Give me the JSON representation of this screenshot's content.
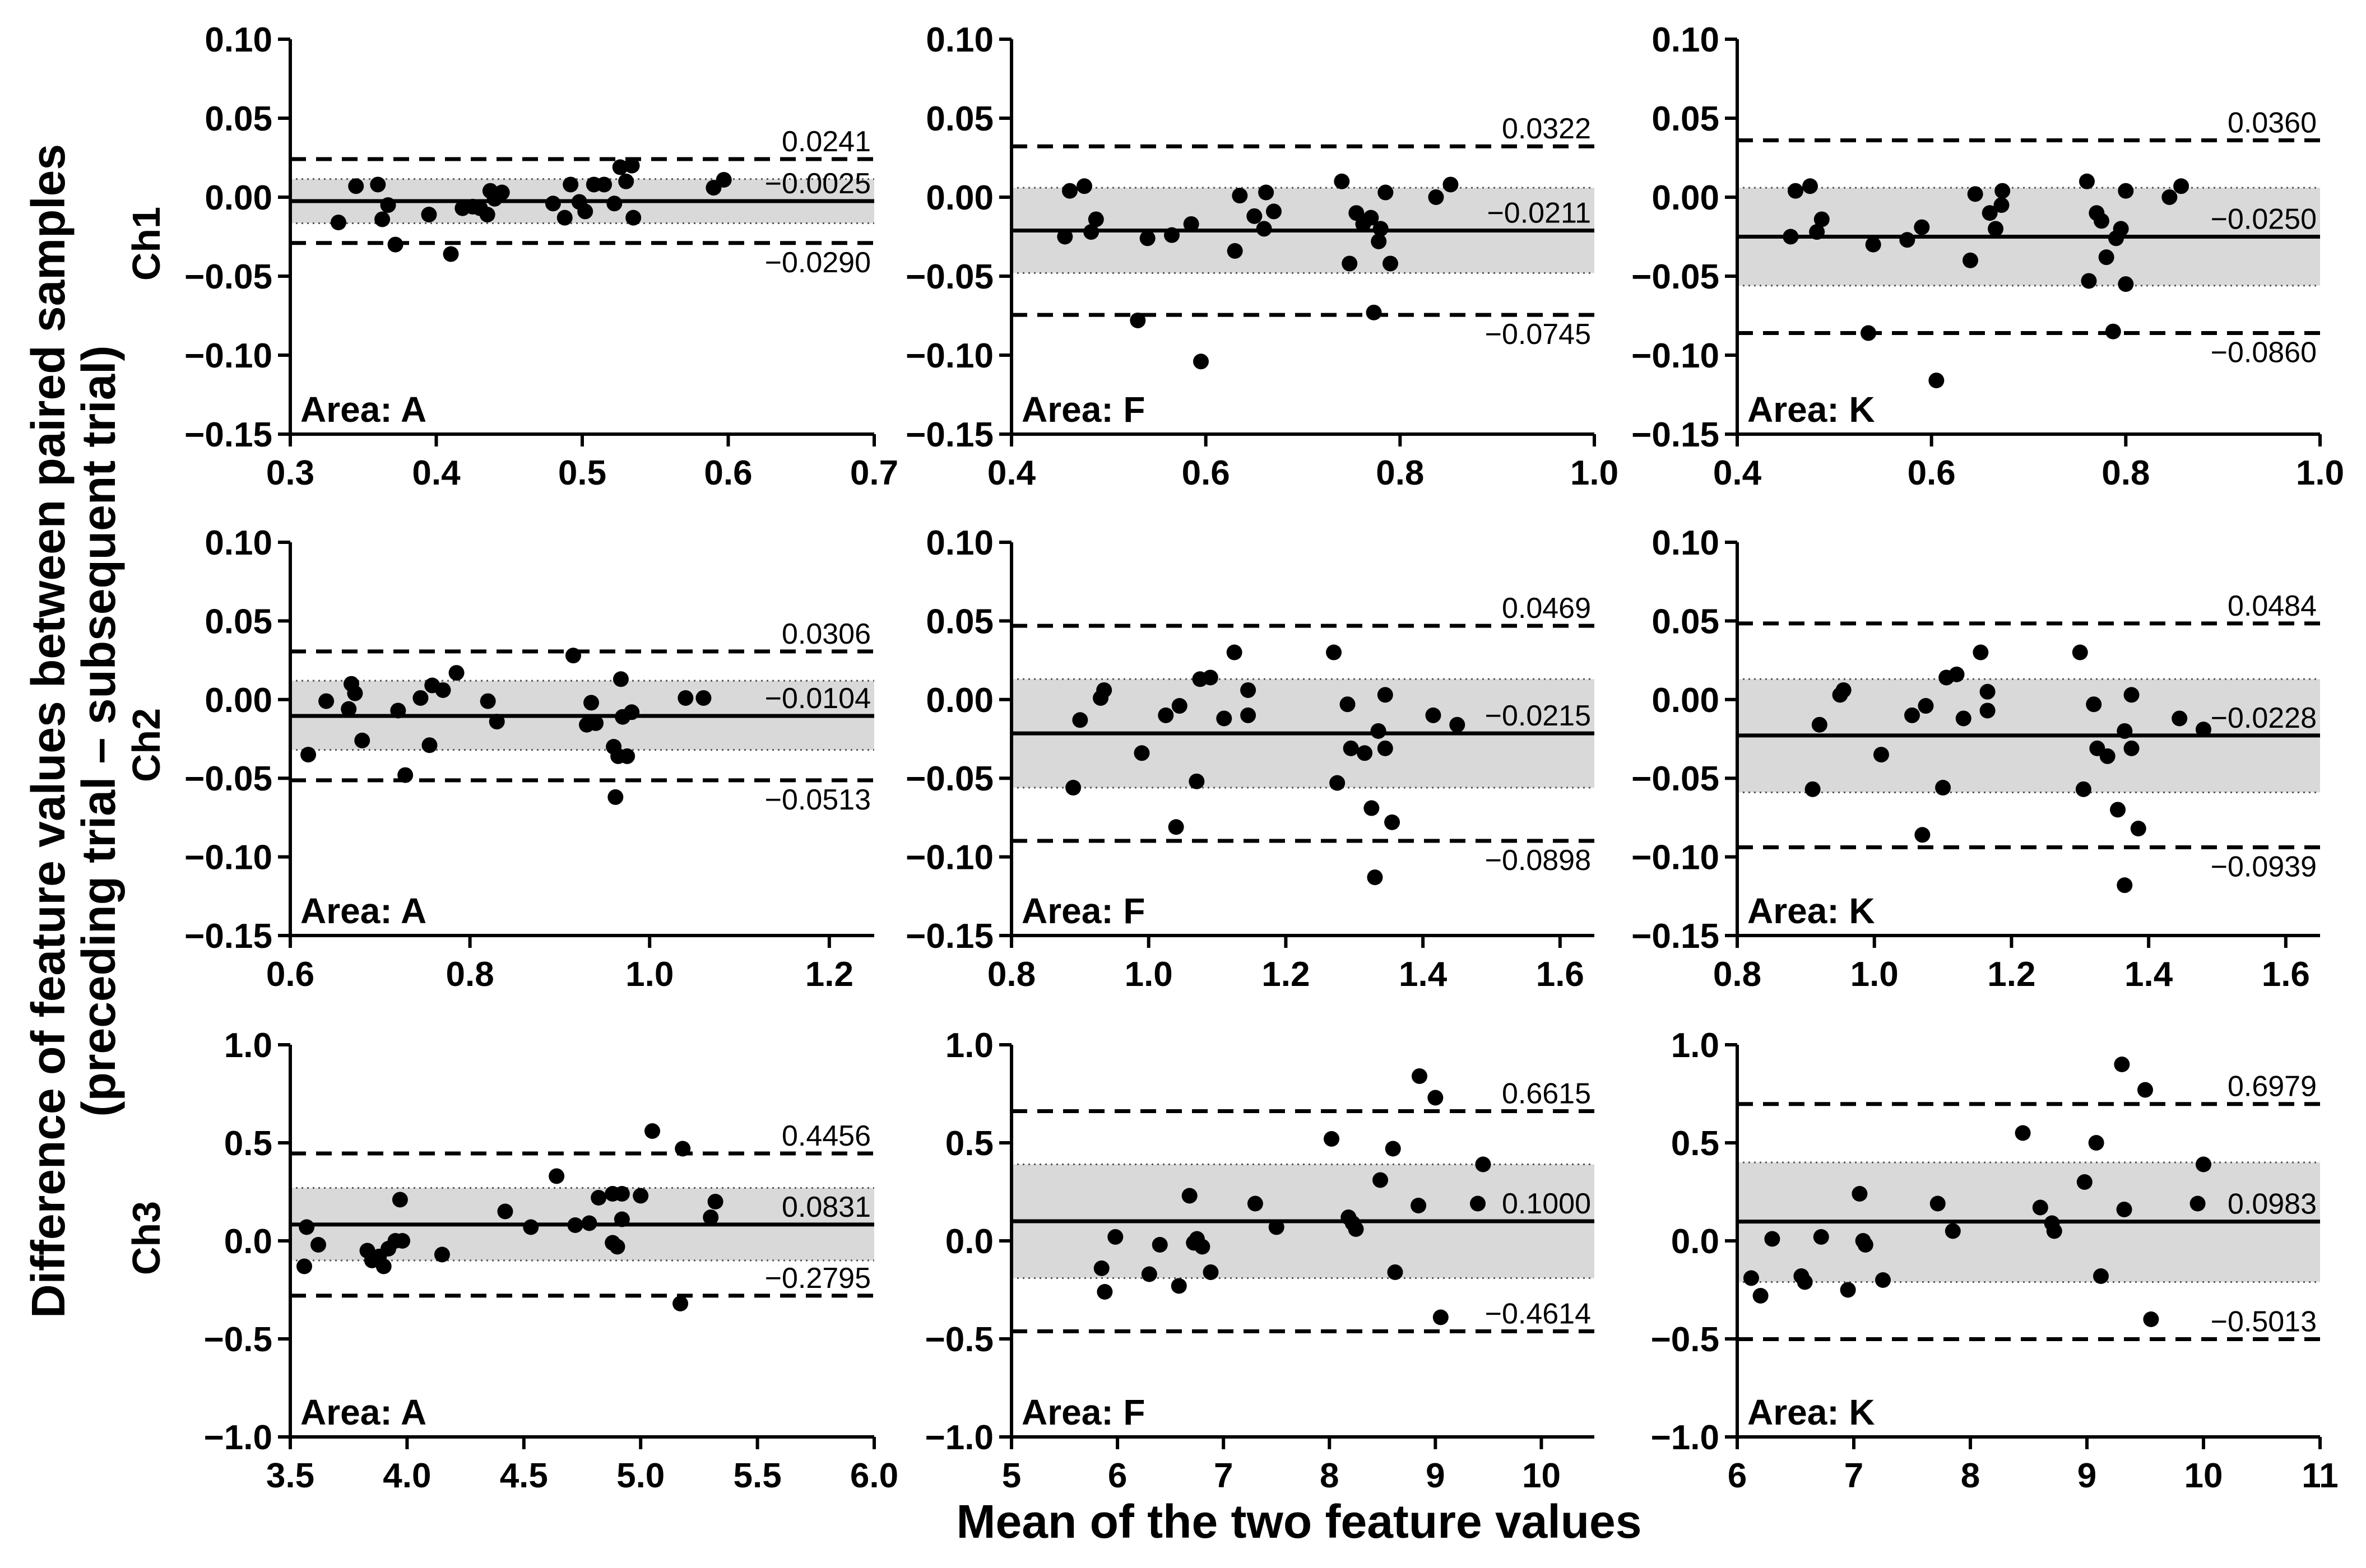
{
  "figure": {
    "ylabel_line1": "Difference of feature values between paired samples",
    "ylabel_line2": "(preceding trial – subsequent trial)",
    "xlabel": "Mean of the two feature values",
    "row_labels": [
      "Ch1",
      "Ch2",
      "Ch3"
    ]
  },
  "chart_data": [
    {
      "type": "scatter",
      "row": 0,
      "col": 0,
      "channel": "Ch1",
      "area_label": "Area: A",
      "xlim": [
        0.3,
        0.7
      ],
      "ylim": [
        -0.15,
        0.1
      ],
      "xticks": [
        "0.3",
        "0.4",
        "0.5",
        "0.6",
        "0.7"
      ],
      "yticks": [
        "−0.15",
        "−0.10",
        "−0.05",
        "0.00",
        "0.05",
        "0.10"
      ],
      "mean": -0.0025,
      "upper": 0.0241,
      "lower": -0.029,
      "ci": [
        -0.0165,
        0.0115
      ],
      "labels": {
        "upper": "0.0241",
        "mean": "−0.0025",
        "lower": "−0.0290"
      },
      "points": [
        [
          0.333,
          -0.016
        ],
        [
          0.345,
          0.007
        ],
        [
          0.36,
          0.008
        ],
        [
          0.363,
          -0.014
        ],
        [
          0.367,
          -0.005
        ],
        [
          0.372,
          -0.03
        ],
        [
          0.395,
          -0.011
        ],
        [
          0.41,
          -0.036
        ],
        [
          0.418,
          -0.007
        ],
        [
          0.425,
          -0.006
        ],
        [
          0.43,
          -0.007
        ],
        [
          0.435,
          -0.011
        ],
        [
          0.437,
          0.004
        ],
        [
          0.44,
          -0.001
        ],
        [
          0.445,
          0.003
        ],
        [
          0.48,
          -0.004
        ],
        [
          0.488,
          -0.013
        ],
        [
          0.492,
          0.008
        ],
        [
          0.498,
          -0.003
        ],
        [
          0.502,
          -0.009
        ],
        [
          0.508,
          0.008
        ],
        [
          0.515,
          0.008
        ],
        [
          0.522,
          -0.004
        ],
        [
          0.526,
          0.019
        ],
        [
          0.53,
          0.01
        ],
        [
          0.534,
          0.02
        ],
        [
          0.535,
          -0.013
        ],
        [
          0.59,
          0.006
        ],
        [
          0.597,
          0.011
        ]
      ]
    },
    {
      "type": "scatter",
      "row": 0,
      "col": 1,
      "channel": "Ch1",
      "area_label": "Area: F",
      "xlim": [
        0.4,
        1.0
      ],
      "ylim": [
        -0.15,
        0.1
      ],
      "xticks": [
        "0.4",
        "0.6",
        "0.8",
        "1.0"
      ],
      "yticks": [
        "−0.15",
        "−0.10",
        "−0.05",
        "0.00",
        "0.05",
        "0.10"
      ],
      "mean": -0.0211,
      "upper": 0.0322,
      "lower": -0.0745,
      "ci": [
        -0.048,
        0.006
      ],
      "labels": {
        "upper": "0.0322",
        "mean": "−0.0211",
        "lower": "−0.0745"
      },
      "points": [
        [
          0.455,
          -0.025
        ],
        [
          0.46,
          0.004
        ],
        [
          0.475,
          0.007
        ],
        [
          0.482,
          -0.022
        ],
        [
          0.487,
          -0.014
        ],
        [
          0.53,
          -0.078
        ],
        [
          0.54,
          -0.026
        ],
        [
          0.565,
          -0.024
        ],
        [
          0.585,
          -0.017
        ],
        [
          0.595,
          -0.104
        ],
        [
          0.63,
          -0.034
        ],
        [
          0.635,
          0.001
        ],
        [
          0.65,
          -0.012
        ],
        [
          0.66,
          -0.02
        ],
        [
          0.67,
          -0.009
        ],
        [
          0.662,
          0.003
        ],
        [
          0.74,
          0.01
        ],
        [
          0.748,
          -0.042
        ],
        [
          0.755,
          -0.01
        ],
        [
          0.762,
          -0.017
        ],
        [
          0.77,
          -0.013
        ],
        [
          0.773,
          -0.073
        ],
        [
          0.778,
          -0.028
        ],
        [
          0.78,
          -0.02
        ],
        [
          0.785,
          0.003
        ],
        [
          0.79,
          -0.042
        ],
        [
          0.837,
          0.0
        ],
        [
          0.852,
          0.008
        ]
      ]
    },
    {
      "type": "scatter",
      "row": 0,
      "col": 2,
      "channel": "Ch1",
      "area_label": "Area: K",
      "xlim": [
        0.4,
        1.0
      ],
      "ylim": [
        -0.15,
        0.1
      ],
      "xticks": [
        "0.4",
        "0.6",
        "0.8",
        "1.0"
      ],
      "yticks": [
        "−0.15",
        "−0.10",
        "−0.05",
        "0.00",
        "0.05",
        "0.10"
      ],
      "mean": -0.025,
      "upper": 0.036,
      "lower": -0.086,
      "ci": [
        -0.056,
        0.006
      ],
      "labels": {
        "upper": "0.0360",
        "mean": "−0.0250",
        "lower": "−0.0860"
      },
      "points": [
        [
          0.455,
          -0.025
        ],
        [
          0.46,
          0.004
        ],
        [
          0.475,
          0.007
        ],
        [
          0.482,
          -0.022
        ],
        [
          0.487,
          -0.014
        ],
        [
          0.535,
          -0.086
        ],
        [
          0.54,
          -0.03
        ],
        [
          0.575,
          -0.027
        ],
        [
          0.59,
          -0.019
        ],
        [
          0.605,
          -0.116
        ],
        [
          0.64,
          -0.04
        ],
        [
          0.645,
          0.002
        ],
        [
          0.66,
          -0.01
        ],
        [
          0.666,
          -0.02
        ],
        [
          0.672,
          -0.005
        ],
        [
          0.673,
          0.004
        ],
        [
          0.76,
          0.01
        ],
        [
          0.762,
          -0.053
        ],
        [
          0.77,
          -0.01
        ],
        [
          0.775,
          -0.015
        ],
        [
          0.78,
          -0.038
        ],
        [
          0.787,
          -0.085
        ],
        [
          0.79,
          -0.026
        ],
        [
          0.795,
          -0.02
        ],
        [
          0.8,
          0.004
        ],
        [
          0.8,
          -0.055
        ],
        [
          0.845,
          0.0
        ],
        [
          0.857,
          0.007
        ]
      ]
    },
    {
      "type": "scatter",
      "row": 1,
      "col": 0,
      "channel": "Ch2",
      "area_label": "Area: A",
      "xlim": [
        0.6,
        1.25
      ],
      "ylim": [
        -0.15,
        0.1
      ],
      "xticks": [
        "0.6",
        "0.8",
        "1.0",
        "1.2"
      ],
      "yticks": [
        "−0.15",
        "−0.10",
        "−0.05",
        "0.00",
        "0.05",
        "0.10"
      ],
      "mean": -0.0104,
      "upper": 0.0306,
      "lower": -0.0513,
      "ci": [
        -0.032,
        0.012
      ],
      "labels": {
        "upper": "0.0306",
        "mean": "−0.0104",
        "lower": "−0.0513"
      },
      "points": [
        [
          0.62,
          -0.035
        ],
        [
          0.64,
          -0.001
        ],
        [
          0.665,
          -0.006
        ],
        [
          0.668,
          0.01
        ],
        [
          0.672,
          0.004
        ],
        [
          0.68,
          -0.026
        ],
        [
          0.72,
          -0.007
        ],
        [
          0.728,
          -0.048
        ],
        [
          0.745,
          0.001
        ],
        [
          0.755,
          -0.029
        ],
        [
          0.758,
          0.009
        ],
        [
          0.77,
          0.006
        ],
        [
          0.785,
          0.017
        ],
        [
          0.82,
          -0.001
        ],
        [
          0.83,
          -0.014
        ],
        [
          0.915,
          0.028
        ],
        [
          0.93,
          -0.016
        ],
        [
          0.935,
          -0.002
        ],
        [
          0.94,
          -0.015
        ],
        [
          0.96,
          -0.03
        ],
        [
          0.962,
          -0.062
        ],
        [
          0.965,
          -0.036
        ],
        [
          0.968,
          0.013
        ],
        [
          0.97,
          -0.011
        ],
        [
          0.975,
          -0.036
        ],
        [
          0.98,
          -0.008
        ],
        [
          1.04,
          0.001
        ],
        [
          1.06,
          0.001
        ]
      ]
    },
    {
      "type": "scatter",
      "row": 1,
      "col": 1,
      "channel": "Ch2",
      "area_label": "Area: F",
      "xlim": [
        0.8,
        1.65
      ],
      "ylim": [
        -0.15,
        0.1
      ],
      "xticks": [
        "0.8",
        "1.0",
        "1.2",
        "1.4",
        "1.6"
      ],
      "yticks": [
        "−0.15",
        "−0.10",
        "−0.05",
        "0.00",
        "0.05",
        "0.10"
      ],
      "mean": -0.0215,
      "upper": 0.0469,
      "lower": -0.0898,
      "ci": [
        -0.056,
        0.013
      ],
      "labels": {
        "upper": "0.0469",
        "mean": "−0.0215",
        "lower": "−0.0898"
      },
      "points": [
        [
          0.89,
          -0.056
        ],
        [
          0.9,
          -0.013
        ],
        [
          0.93,
          0.001
        ],
        [
          0.935,
          0.006
        ],
        [
          0.99,
          -0.034
        ],
        [
          1.025,
          -0.01
        ],
        [
          1.04,
          -0.081
        ],
        [
          1.045,
          -0.004
        ],
        [
          1.07,
          -0.052
        ],
        [
          1.075,
          0.013
        ],
        [
          1.09,
          0.014
        ],
        [
          1.11,
          -0.012
        ],
        [
          1.125,
          0.03
        ],
        [
          1.145,
          -0.01
        ],
        [
          1.145,
          0.006
        ],
        [
          1.27,
          0.03
        ],
        [
          1.275,
          -0.053
        ],
        [
          1.29,
          -0.003
        ],
        [
          1.295,
          -0.031
        ],
        [
          1.315,
          -0.034
        ],
        [
          1.325,
          -0.069
        ],
        [
          1.33,
          -0.113
        ],
        [
          1.335,
          -0.02
        ],
        [
          1.345,
          0.003
        ],
        [
          1.345,
          -0.031
        ],
        [
          1.355,
          -0.078
        ],
        [
          1.415,
          -0.01
        ],
        [
          1.45,
          -0.016
        ]
      ]
    },
    {
      "type": "scatter",
      "row": 1,
      "col": 2,
      "channel": "Ch2",
      "area_label": "Area: K",
      "xlim": [
        0.8,
        1.65
      ],
      "ylim": [
        -0.15,
        0.1
      ],
      "xticks": [
        "0.8",
        "1.0",
        "1.2",
        "1.4",
        "1.6"
      ],
      "yticks": [
        "−0.15",
        "−0.10",
        "−0.05",
        "0.00",
        "0.05",
        "0.10"
      ],
      "mean": -0.0228,
      "upper": 0.0484,
      "lower": -0.0939,
      "ci": [
        -0.059,
        0.013
      ],
      "labels": {
        "upper": "0.0484",
        "mean": "−0.0228",
        "lower": "−0.0939"
      },
      "points": [
        [
          0.91,
          -0.057
        ],
        [
          0.92,
          -0.016
        ],
        [
          0.95,
          0.003
        ],
        [
          0.955,
          0.006
        ],
        [
          1.01,
          -0.035
        ],
        [
          1.055,
          -0.01
        ],
        [
          1.07,
          -0.086
        ],
        [
          1.075,
          -0.004
        ],
        [
          1.1,
          -0.056
        ],
        [
          1.105,
          0.014
        ],
        [
          1.12,
          0.016
        ],
        [
          1.13,
          -0.012
        ],
        [
          1.155,
          0.03
        ],
        [
          1.165,
          -0.007
        ],
        [
          1.165,
          0.005
        ],
        [
          1.3,
          0.03
        ],
        [
          1.305,
          -0.057
        ],
        [
          1.32,
          -0.003
        ],
        [
          1.325,
          -0.031
        ],
        [
          1.34,
          -0.036
        ],
        [
          1.355,
          -0.07
        ],
        [
          1.365,
          -0.118
        ],
        [
          1.365,
          -0.02
        ],
        [
          1.375,
          0.003
        ],
        [
          1.375,
          -0.031
        ],
        [
          1.385,
          -0.082
        ],
        [
          1.445,
          -0.012
        ],
        [
          1.48,
          -0.019
        ]
      ]
    },
    {
      "type": "scatter",
      "row": 2,
      "col": 0,
      "channel": "Ch3",
      "area_label": "Area: A",
      "xlim": [
        3.5,
        6.0
      ],
      "ylim": [
        -1.0,
        1.0
      ],
      "xticks": [
        "3.5",
        "4.0",
        "4.5",
        "5.0",
        "5.5",
        "6.0"
      ],
      "yticks": [
        "−1.0",
        "−0.5",
        "0.0",
        "0.5",
        "1.0"
      ],
      "mean": 0.0831,
      "upper": 0.4456,
      "lower": -0.2795,
      "ci": [
        -0.1,
        0.27
      ],
      "labels": {
        "upper": "0.4456",
        "mean": "0.0831",
        "lower": "−0.2795"
      },
      "points": [
        [
          3.56,
          -0.13
        ],
        [
          3.57,
          0.07
        ],
        [
          3.62,
          -0.02
        ],
        [
          3.83,
          -0.05
        ],
        [
          3.85,
          -0.1
        ],
        [
          3.88,
          -0.08
        ],
        [
          3.9,
          -0.13
        ],
        [
          3.92,
          -0.04
        ],
        [
          3.95,
          0.0
        ],
        [
          3.98,
          0.0
        ],
        [
          3.97,
          0.21
        ],
        [
          4.15,
          -0.07
        ],
        [
          4.42,
          0.15
        ],
        [
          4.53,
          0.07
        ],
        [
          4.64,
          0.33
        ],
        [
          4.72,
          0.08
        ],
        [
          4.78,
          0.09
        ],
        [
          4.82,
          0.22
        ],
        [
          4.88,
          -0.01
        ],
        [
          4.9,
          -0.03
        ],
        [
          4.88,
          0.24
        ],
        [
          4.92,
          0.24
        ],
        [
          4.92,
          0.11
        ],
        [
          5.0,
          0.23
        ],
        [
          5.05,
          0.56
        ],
        [
          5.17,
          -0.32
        ],
        [
          5.18,
          0.47
        ],
        [
          5.3,
          0.12
        ],
        [
          5.32,
          0.2
        ]
      ]
    },
    {
      "type": "scatter",
      "row": 2,
      "col": 1,
      "channel": "Ch3",
      "area_label": "Area: F",
      "xlim": [
        5,
        10.5
      ],
      "ylim": [
        -1.0,
        1.0
      ],
      "xticks": [
        "5",
        "6",
        "7",
        "8",
        "9",
        "10"
      ],
      "yticks": [
        "−1.0",
        "−0.5",
        "0.0",
        "0.5",
        "1.0"
      ],
      "mean": 0.1,
      "upper": 0.6615,
      "lower": -0.4614,
      "ci": [
        -0.19,
        0.39
      ],
      "labels": {
        "upper": "0.6615",
        "mean": "0.1000",
        "lower": "−0.4614"
      },
      "points": [
        [
          5.85,
          -0.14
        ],
        [
          5.88,
          -0.26
        ],
        [
          5.98,
          0.02
        ],
        [
          6.3,
          -0.17
        ],
        [
          6.4,
          -0.02
        ],
        [
          6.58,
          -0.23
        ],
        [
          6.68,
          0.23
        ],
        [
          6.72,
          -0.01
        ],
        [
          6.75,
          0.01
        ],
        [
          6.8,
          -0.03
        ],
        [
          6.88,
          -0.16
        ],
        [
          7.3,
          0.19
        ],
        [
          7.5,
          0.07
        ],
        [
          8.02,
          0.52
        ],
        [
          8.18,
          0.12
        ],
        [
          8.22,
          0.09
        ],
        [
          8.25,
          0.06
        ],
        [
          8.48,
          0.31
        ],
        [
          8.6,
          0.47
        ],
        [
          8.62,
          -0.16
        ],
        [
          8.85,
          0.84
        ],
        [
          8.84,
          0.18
        ],
        [
          9.0,
          0.73
        ],
        [
          9.05,
          -0.39
        ],
        [
          9.4,
          0.19
        ],
        [
          9.45,
          0.39
        ]
      ]
    },
    {
      "type": "scatter",
      "row": 2,
      "col": 2,
      "channel": "Ch3",
      "area_label": "Area: K",
      "xlim": [
        6,
        11
      ],
      "ylim": [
        -1.0,
        1.0
      ],
      "xticks": [
        "6",
        "7",
        "8",
        "9",
        "10",
        "11"
      ],
      "yticks": [
        "−1.0",
        "−0.5",
        "0.0",
        "0.5",
        "1.0"
      ],
      "mean": 0.0983,
      "upper": 0.6979,
      "lower": -0.5013,
      "ci": [
        -0.21,
        0.4
      ],
      "labels": {
        "upper": "0.6979",
        "mean": "0.0983",
        "lower": "−0.5013"
      },
      "points": [
        [
          6.12,
          -0.19
        ],
        [
          6.2,
          -0.28
        ],
        [
          6.3,
          0.01
        ],
        [
          6.55,
          -0.18
        ],
        [
          6.58,
          -0.21
        ],
        [
          6.72,
          0.02
        ],
        [
          6.95,
          -0.25
        ],
        [
          7.05,
          0.24
        ],
        [
          7.08,
          0.0
        ],
        [
          7.1,
          -0.02
        ],
        [
          7.25,
          -0.2
        ],
        [
          7.72,
          0.19
        ],
        [
          7.85,
          0.05
        ],
        [
          8.45,
          0.55
        ],
        [
          8.6,
          0.17
        ],
        [
          8.7,
          0.09
        ],
        [
          8.72,
          0.05
        ],
        [
          8.98,
          0.3
        ],
        [
          9.08,
          0.5
        ],
        [
          9.12,
          -0.18
        ],
        [
          9.3,
          0.9
        ],
        [
          9.32,
          0.16
        ],
        [
          9.5,
          0.77
        ],
        [
          9.55,
          -0.4
        ],
        [
          9.95,
          0.19
        ],
        [
          10.0,
          0.39
        ]
      ]
    }
  ]
}
